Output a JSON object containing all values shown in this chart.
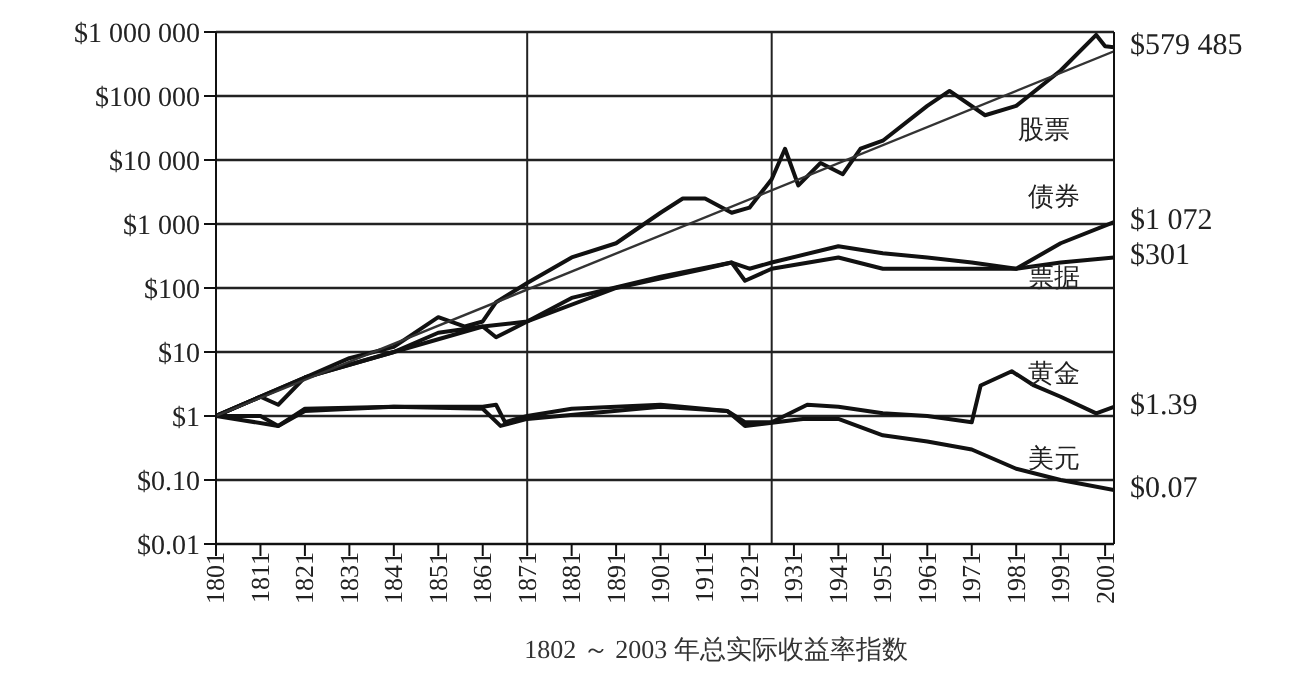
{
  "chart_data": {
    "type": "line",
    "log": "y",
    "grid": "y",
    "marker": "none",
    "line_style": "solid",
    "xlim": [
      1801,
      2003
    ],
    "xticks": [
      1801,
      1811,
      1821,
      1831,
      1841,
      1851,
      1861,
      1871,
      1881,
      1891,
      1901,
      1911,
      1921,
      1931,
      1941,
      1951,
      1961,
      1971,
      1981,
      1991,
      2001
    ],
    "ylim": [
      0.01,
      1000000
    ],
    "yticks": [
      {
        "value": 1000000,
        "label": "$1 000 000"
      },
      {
        "value": 100000,
        "label": "$100 000"
      },
      {
        "value": 10000,
        "label": "$10 000"
      },
      {
        "value": 1000,
        "label": "$1 000"
      },
      {
        "value": 100,
        "label": "$100"
      },
      {
        "value": 10,
        "label": "$10"
      },
      {
        "value": 1,
        "label": "$1"
      },
      {
        "value": 0.1,
        "label": "$0.10"
      },
      {
        "value": 0.01,
        "label": "$0.01"
      }
    ],
    "ref_lines": [
      {
        "axis": "x",
        "value": 1871,
        "label": null,
        "color": "#222222"
      },
      {
        "axis": "x",
        "value": 1926,
        "label": null,
        "color": "#222222"
      }
    ],
    "series": [
      {
        "name": "股票",
        "color": "#111111",
        "x": [
          1801,
          1811,
          1815,
          1821,
          1831,
          1841,
          1851,
          1857,
          1861,
          1864,
          1871,
          1881,
          1891,
          1901,
          1906,
          1911,
          1917,
          1921,
          1926,
          1929,
          1932,
          1937,
          1942,
          1946,
          1951,
          1961,
          1966,
          1974,
          1981,
          1991,
          1999,
          2001,
          2003
        ],
        "values": [
          1,
          2,
          1.5,
          4,
          8,
          12,
          35,
          25,
          30,
          60,
          120,
          300,
          500,
          1500,
          2500,
          2500,
          1500,
          1800,
          5000,
          15000,
          4000,
          9000,
          6000,
          15000,
          20000,
          70000,
          120000,
          50000,
          70000,
          250000,
          900000,
          600000,
          579485
        ]
      },
      {
        "name": "债券",
        "color": "#111111",
        "x": [
          1801,
          1821,
          1841,
          1851,
          1861,
          1864,
          1871,
          1881,
          1901,
          1917,
          1921,
          1926,
          1941,
          1951,
          1961,
          1971,
          1981,
          1991,
          2003
        ],
        "values": [
          1,
          4,
          10,
          20,
          25,
          17,
          30,
          70,
          150,
          250,
          200,
          250,
          450,
          350,
          300,
          250,
          200,
          500,
          1072
        ]
      },
      {
        "name": "票据",
        "color": "#111111",
        "x": [
          1801,
          1821,
          1841,
          1861,
          1871,
          1891,
          1911,
          1917,
          1920,
          1926,
          1941,
          1951,
          1961,
          1971,
          1981,
          1991,
          2003
        ],
        "values": [
          1,
          4,
          10,
          25,
          30,
          100,
          200,
          250,
          130,
          200,
          300,
          200,
          200,
          200,
          200,
          250,
          301
        ]
      },
      {
        "name": "黄金",
        "color": "#111111",
        "x": [
          1801,
          1811,
          1815,
          1821,
          1841,
          1861,
          1864,
          1866,
          1871,
          1881,
          1901,
          1916,
          1920,
          1926,
          1934,
          1941,
          1951,
          1961,
          1971,
          1973,
          1980,
          1985,
          1991,
          1999,
          2003
        ],
        "values": [
          1,
          1,
          0.7,
          1.3,
          1.4,
          1.4,
          1.5,
          0.8,
          1,
          1.3,
          1.5,
          1.2,
          0.8,
          0.8,
          1.5,
          1.4,
          1.1,
          1,
          0.8,
          3,
          5,
          3,
          2,
          1.1,
          1.39
        ]
      },
      {
        "name": "美元",
        "color": "#111111",
        "x": [
          1801,
          1815,
          1821,
          1841,
          1861,
          1865,
          1871,
          1901,
          1916,
          1920,
          1933,
          1941,
          1951,
          1961,
          1971,
          1981,
          1991,
          2003
        ],
        "values": [
          1,
          0.7,
          1.2,
          1.4,
          1.3,
          0.7,
          0.9,
          1.4,
          1.2,
          0.7,
          0.9,
          0.9,
          0.5,
          0.4,
          0.3,
          0.15,
          0.1,
          0.07
        ]
      },
      {
        "color": "#333333",
        "x": [
          1801,
          2003
        ],
        "values": [
          1,
          500000
        ]
      }
    ],
    "annotations": [
      "$579 485",
      "$1 072",
      "$301",
      "$1.39",
      "$0.07",
      "1802 ～ 2003 年总实际收益率指数"
    ]
  }
}
